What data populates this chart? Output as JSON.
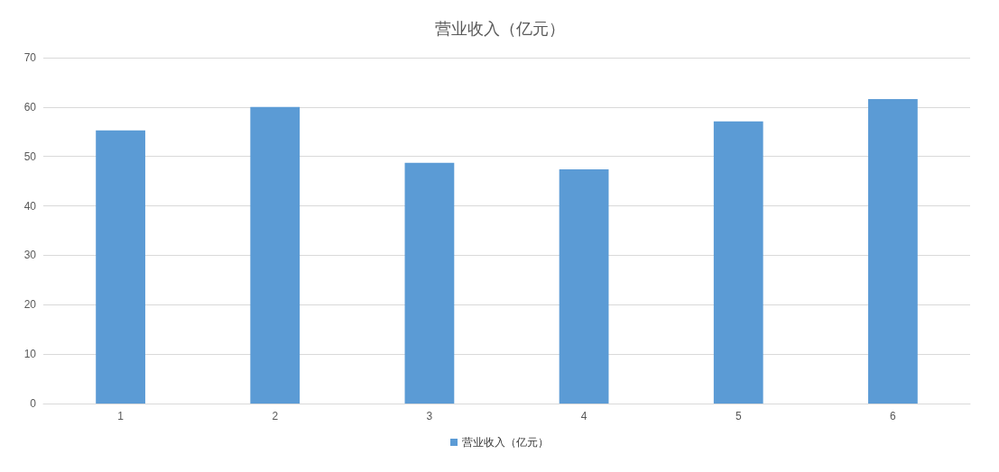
{
  "chart_data": {
    "type": "bar",
    "title": "营业收入（亿元）",
    "categories": [
      "1",
      "2",
      "3",
      "4",
      "5",
      "6"
    ],
    "series": [
      {
        "name": "营业收入（亿元）",
        "color": "#5b9bd5",
        "values": [
          55.3,
          60.0,
          48.7,
          47.4,
          57.1,
          61.6
        ]
      }
    ],
    "ylim": [
      0,
      70
    ],
    "yticks": [
      0,
      10,
      20,
      30,
      40,
      50,
      60,
      70
    ],
    "grid": "y",
    "legend": "bottom"
  }
}
